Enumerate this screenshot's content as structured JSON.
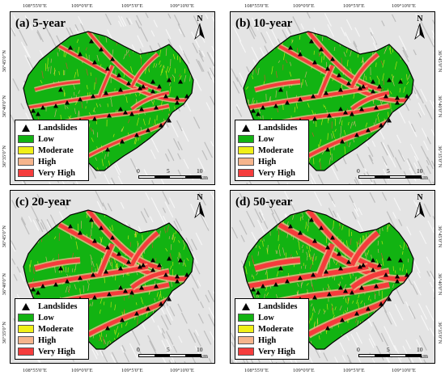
{
  "coords": {
    "top_left": [
      "108°55'0\"E",
      "109°0'0\"E",
      "109°5'0\"E",
      "109°10'0\"E"
    ],
    "top_right": [
      "108°55'0\"E",
      "109°0'0\"E",
      "109°5'0\"E",
      "109°10'0\"E"
    ],
    "bottom_left": [
      "108°55'0\"E",
      "109°0'0\"E",
      "109°5'0\"E",
      "109°10'0\"E"
    ],
    "bottom_right": [
      "108°55'0\"E",
      "109°0'0\"E",
      "109°5'0\"E",
      "109°10'0\"E"
    ],
    "lat_upper": [
      "36°45'0\"N",
      "36°40'0\"N",
      "36°35'0\"N"
    ],
    "lat_lower": [
      "36°45'0\"N",
      "36°40'0\"N",
      "36°35'0\"N"
    ]
  },
  "panels": [
    {
      "title": "(a) 5-year",
      "intensity": 1
    },
    {
      "title": "(b) 10-year",
      "intensity": 2
    },
    {
      "title": "(c) 20-year",
      "intensity": 3
    },
    {
      "title": "(d) 50-year",
      "intensity": 4
    }
  ],
  "north_label": "N",
  "legend": {
    "items": [
      {
        "label": "Landslides",
        "kind": "triangle"
      },
      {
        "label": "Low",
        "color": "#12b312"
      },
      {
        "label": "Moderate",
        "color": "#f0f018"
      },
      {
        "label": "High",
        "color": "#f5b48c"
      },
      {
        "label": "Very High",
        "color": "#f53c3c"
      }
    ]
  },
  "scalebar": {
    "ticks": [
      "0",
      "5",
      "10"
    ],
    "unit": "km"
  },
  "colors": {
    "low": "#12b312",
    "moderate": "#f0f018",
    "high": "#f5b48c",
    "very_high": "#f53c3c",
    "hillshade": "#cfcfcf"
  }
}
